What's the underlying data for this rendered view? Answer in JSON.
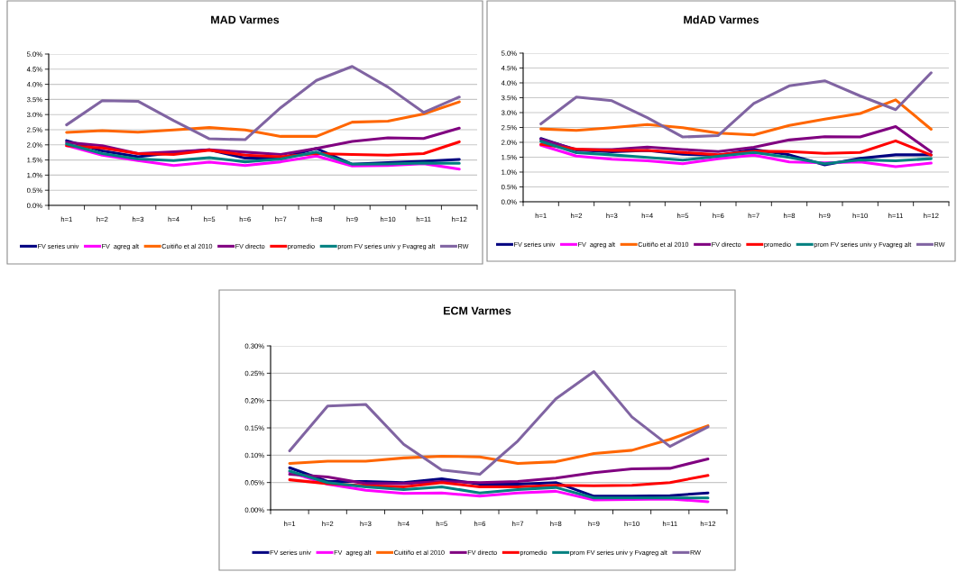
{
  "chart_data": [
    {
      "type": "line",
      "title": "MAD Varmes",
      "categories": [
        "h=1",
        "h=2",
        "h=3",
        "h=4",
        "h=5",
        "h=6",
        "h=7",
        "h=8",
        "h=9",
        "h=10",
        "h=11",
        "h=12"
      ],
      "ylim": [
        0,
        5.0
      ],
      "yticks": [
        {
          "value": 0,
          "label": "0.0%"
        },
        {
          "value": 0.5,
          "label": "0.5%"
        },
        {
          "value": 1.0,
          "label": "1.0%"
        },
        {
          "value": 1.5,
          "label": "1.5%"
        },
        {
          "value": 2.0,
          "label": "2.0%"
        },
        {
          "value": 2.5,
          "label": "2.5%"
        },
        {
          "value": 3.0,
          "label": "3.0%"
        },
        {
          "value": 3.5,
          "label": "3.5%"
        },
        {
          "value": 4.0,
          "label": "4.0%"
        },
        {
          "value": 4.5,
          "label": "4.5%"
        },
        {
          "value": 5.0,
          "label": "5.0%"
        }
      ],
      "grid": "y",
      "legend": "bottom",
      "series": [
        {
          "name": "FV series univ",
          "color": "#000080",
          "values": [
            2.14,
            1.8,
            1.61,
            1.74,
            1.84,
            1.56,
            1.56,
            1.88,
            1.36,
            1.41,
            1.46,
            1.52
          ]
        },
        {
          "name": "FV  agreg alt",
          "color": "#ff00ff",
          "values": [
            1.98,
            1.66,
            1.48,
            1.32,
            1.43,
            1.32,
            1.44,
            1.63,
            1.3,
            1.32,
            1.38,
            1.2
          ]
        },
        {
          "name": "Cuitiño et al 2010",
          "color": "#ff6600",
          "values": [
            2.41,
            2.47,
            2.42,
            2.49,
            2.57,
            2.49,
            2.28,
            2.28,
            2.75,
            2.78,
            3.02,
            3.42
          ]
        },
        {
          "name": "FV directo",
          "color": "#800080",
          "values": [
            2.08,
            1.97,
            1.71,
            1.77,
            1.84,
            1.76,
            1.68,
            1.88,
            2.11,
            2.23,
            2.21,
            2.55
          ]
        },
        {
          "name": "promedio",
          "color": "#ff0000",
          "values": [
            1.97,
            1.9,
            1.71,
            1.68,
            1.82,
            1.66,
            1.61,
            1.71,
            1.68,
            1.66,
            1.71,
            2.1
          ]
        },
        {
          "name": "prom FV series univ y Fvagreg alt",
          "color": "#008080",
          "values": [
            2.03,
            1.71,
            1.53,
            1.48,
            1.58,
            1.44,
            1.53,
            1.76,
            1.36,
            1.37,
            1.4,
            1.39
          ]
        },
        {
          "name": "RW",
          "color": "#8064a2",
          "values": [
            2.66,
            3.46,
            3.44,
            2.8,
            2.2,
            2.17,
            3.23,
            4.13,
            4.59,
            3.91,
            3.07,
            3.58
          ]
        }
      ]
    },
    {
      "type": "line",
      "title": "MdAD Varmes",
      "categories": [
        "h=1",
        "h=2",
        "h=3",
        "h=4",
        "h=5",
        "h=6",
        "h=7",
        "h=8",
        "h=9",
        "h=10",
        "h=11",
        "h=12"
      ],
      "ylim": [
        0,
        5.0
      ],
      "yticks": [
        {
          "value": 0,
          "label": "0.0%"
        },
        {
          "value": 0.5,
          "label": "0.5%"
        },
        {
          "value": 1.0,
          "label": "1.0%"
        },
        {
          "value": 1.5,
          "label": "1.5%"
        },
        {
          "value": 2.0,
          "label": "2.0%"
        },
        {
          "value": 2.5,
          "label": "2.5%"
        },
        {
          "value": 3.0,
          "label": "3.0%"
        },
        {
          "value": 3.5,
          "label": "3.5%"
        },
        {
          "value": 4.0,
          "label": "4.0%"
        },
        {
          "value": 4.5,
          "label": "4.5%"
        },
        {
          "value": 5.0,
          "label": "5.0%"
        }
      ],
      "grid": "y",
      "legend": "bottom",
      "series": [
        {
          "name": "FV series univ",
          "color": "#000080",
          "values": [
            2.13,
            1.74,
            1.68,
            1.73,
            1.6,
            1.56,
            1.76,
            1.58,
            1.24,
            1.46,
            1.58,
            1.58
          ]
        },
        {
          "name": "FV  agreg alt",
          "color": "#ff00ff",
          "values": [
            1.9,
            1.54,
            1.43,
            1.38,
            1.28,
            1.45,
            1.57,
            1.34,
            1.31,
            1.34,
            1.18,
            1.3
          ]
        },
        {
          "name": "Cuitiño et al 2010",
          "color": "#ff6600",
          "values": [
            2.45,
            2.4,
            2.49,
            2.6,
            2.49,
            2.31,
            2.25,
            2.57,
            2.78,
            2.97,
            3.43,
            2.44
          ]
        },
        {
          "name": "FV directo",
          "color": "#800080",
          "values": [
            2.1,
            1.76,
            1.76,
            1.84,
            1.76,
            1.69,
            1.83,
            2.08,
            2.19,
            2.18,
            2.53,
            1.68
          ]
        },
        {
          "name": "promedio",
          "color": "#ff0000",
          "values": [
            1.93,
            1.77,
            1.73,
            1.73,
            1.66,
            1.58,
            1.7,
            1.69,
            1.63,
            1.66,
            2.05,
            1.57
          ]
        },
        {
          "name": "prom FV series univ y Fvagreg alt",
          "color": "#008080",
          "values": [
            2.03,
            1.65,
            1.58,
            1.49,
            1.4,
            1.53,
            1.66,
            1.49,
            1.28,
            1.41,
            1.38,
            1.45
          ]
        },
        {
          "name": "RW",
          "color": "#8064a2",
          "values": [
            2.62,
            3.52,
            3.4,
            2.83,
            2.18,
            2.23,
            3.31,
            3.9,
            4.07,
            3.56,
            3.1,
            4.34
          ]
        }
      ]
    },
    {
      "type": "line",
      "title": "ECM Varmes",
      "categories": [
        "h=1",
        "h=2",
        "h=3",
        "h=4",
        "h=5",
        "h=6",
        "h=7",
        "h=8",
        "h=9",
        "h=10",
        "h=11",
        "h=12"
      ],
      "ylim": [
        0,
        0.3
      ],
      "yticks": [
        {
          "value": 0,
          "label": "0.00%"
        },
        {
          "value": 0.05,
          "label": "0.05%"
        },
        {
          "value": 0.1,
          "label": "0.10%"
        },
        {
          "value": 0.15,
          "label": "0.15%"
        },
        {
          "value": 0.2,
          "label": "0.20%"
        },
        {
          "value": 0.25,
          "label": "0.25%"
        },
        {
          "value": 0.3,
          "label": "0.30%"
        }
      ],
      "grid": "y",
      "legend": "bottom",
      "series": [
        {
          "name": "FV series univ",
          "color": "#000080",
          "values": [
            0.077,
            0.052,
            0.052,
            0.05,
            0.057,
            0.047,
            0.047,
            0.05,
            0.025,
            0.025,
            0.026,
            0.031
          ]
        },
        {
          "name": "FV  agreg alt",
          "color": "#ff00ff",
          "values": [
            0.069,
            0.047,
            0.036,
            0.03,
            0.031,
            0.025,
            0.031,
            0.034,
            0.018,
            0.019,
            0.02,
            0.015
          ]
        },
        {
          "name": "Cuitiño et al 2010",
          "color": "#ff6600",
          "values": [
            0.085,
            0.089,
            0.089,
            0.095,
            0.098,
            0.097,
            0.085,
            0.088,
            0.103,
            0.109,
            0.129,
            0.154
          ]
        },
        {
          "name": "FV directo",
          "color": "#800080",
          "values": [
            0.065,
            0.06,
            0.048,
            0.048,
            0.052,
            0.05,
            0.052,
            0.058,
            0.068,
            0.075,
            0.076,
            0.093
          ]
        },
        {
          "name": "promedio",
          "color": "#ff0000",
          "values": [
            0.055,
            0.048,
            0.044,
            0.042,
            0.05,
            0.042,
            0.042,
            0.045,
            0.044,
            0.045,
            0.05,
            0.063
          ]
        },
        {
          "name": "prom FV series univ y Fvagreg alt",
          "color": "#008080",
          "values": [
            0.071,
            0.05,
            0.042,
            0.037,
            0.042,
            0.031,
            0.037,
            0.041,
            0.022,
            0.022,
            0.022,
            0.022
          ]
        },
        {
          "name": "RW",
          "color": "#8064a2",
          "values": [
            0.108,
            0.19,
            0.193,
            0.12,
            0.073,
            0.065,
            0.126,
            0.203,
            0.253,
            0.17,
            0.116,
            0.152
          ]
        }
      ]
    }
  ]
}
